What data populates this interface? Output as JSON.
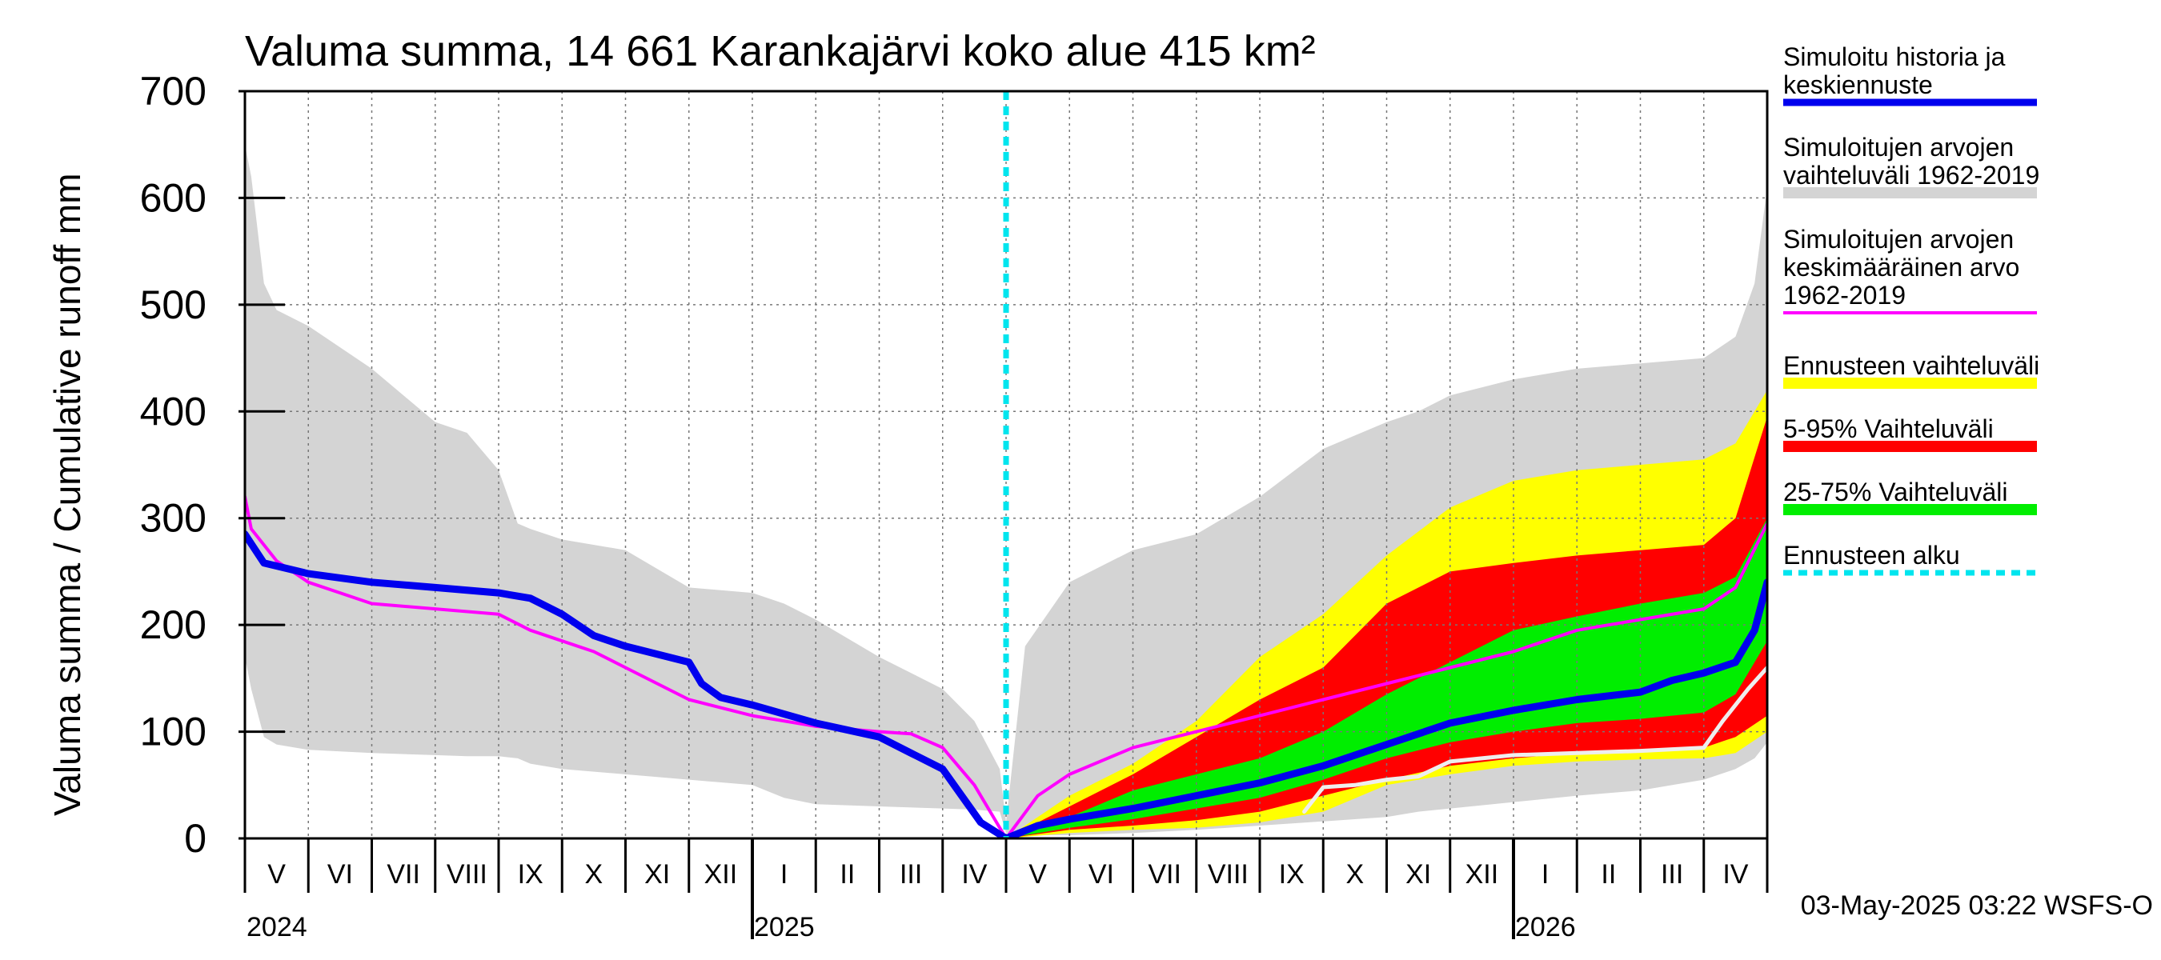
{
  "chart_data": {
    "type": "area",
    "title": "Valuma summa, 14 661 Karankajärvi koko alue 415 km²",
    "ylabel": "Valuma summa / Cumulative runoff    mm",
    "ylim": [
      0,
      700
    ],
    "yticks": [
      0,
      100,
      200,
      300,
      400,
      500,
      600,
      700
    ],
    "xlim": [
      0,
      24
    ],
    "forecast_start": 12,
    "month_labels": [
      {
        "pos": 0.5,
        "label": "V"
      },
      {
        "pos": 1.5,
        "label": "VI"
      },
      {
        "pos": 2.5,
        "label": "VII"
      },
      {
        "pos": 3.5,
        "label": "VIII"
      },
      {
        "pos": 4.5,
        "label": "IX"
      },
      {
        "pos": 5.5,
        "label": "X"
      },
      {
        "pos": 6.5,
        "label": "XI"
      },
      {
        "pos": 7.5,
        "label": "XII"
      },
      {
        "pos": 8.5,
        "label": "I"
      },
      {
        "pos": 9.5,
        "label": "II"
      },
      {
        "pos": 10.5,
        "label": "III"
      },
      {
        "pos": 11.5,
        "label": "IV"
      },
      {
        "pos": 12.5,
        "label": "V"
      },
      {
        "pos": 13.5,
        "label": "VI"
      },
      {
        "pos": 14.5,
        "label": "VII"
      },
      {
        "pos": 15.5,
        "label": "VIII"
      },
      {
        "pos": 16.5,
        "label": "IX"
      },
      {
        "pos": 17.5,
        "label": "X"
      },
      {
        "pos": 18.5,
        "label": "XI"
      },
      {
        "pos": 19.5,
        "label": "XII"
      },
      {
        "pos": 20.5,
        "label": "I"
      },
      {
        "pos": 21.5,
        "label": "II"
      },
      {
        "pos": 22.5,
        "label": "III"
      },
      {
        "pos": 23.5,
        "label": "IV"
      }
    ],
    "year_labels": [
      {
        "pos": 0,
        "label": "2024"
      },
      {
        "pos": 8,
        "label": "2025"
      },
      {
        "pos": 20,
        "label": "2026"
      }
    ],
    "year_ticks": [
      8,
      20
    ],
    "timestamp": "03-May-2025 03:22 WSFS-O",
    "legend": [
      {
        "label": "Simuloitu historia ja\nkeskiennuste",
        "color": "#0000ee",
        "style": "line"
      },
      {
        "label": "Simuloitujen arvojen\nvaihteluväli 1962-2019",
        "color": "#d4d4d4",
        "style": "band"
      },
      {
        "label": "Simuloitujen arvojen\nkeskimääräinen arvo\n   1962-2019",
        "color": "#ff00ff",
        "style": "thin"
      },
      {
        "label": "Ennusteen vaihteluväli",
        "color": "#ffff00",
        "style": "band"
      },
      {
        "label": "5-95% Vaihteluväli",
        "color": "#ff0000",
        "style": "band"
      },
      {
        "label": "25-75% Vaihteluväli",
        "color": "#00ee00",
        "style": "band"
      },
      {
        "label": "Ennusteen alku",
        "color": "#00e5ee",
        "style": "dashed"
      }
    ],
    "series": {
      "hist_range": {
        "name": "Simuloitujen arvojen vaihteluväli 1962-2019",
        "x": [
          0,
          0.1,
          0.3,
          0.5,
          1,
          2,
          3,
          3.5,
          4,
          4.3,
          4.5,
          5,
          6,
          7,
          8,
          8.5,
          9,
          10,
          11,
          11.5,
          11.9,
          12,
          12.3,
          13,
          14,
          15,
          16,
          17,
          18,
          18.5,
          19,
          20,
          21,
          22,
          23,
          23.5,
          23.8,
          24
        ],
        "upper": [
          650,
          620,
          520,
          495,
          480,
          440,
          390,
          380,
          345,
          295,
          290,
          280,
          270,
          235,
          230,
          220,
          205,
          170,
          140,
          110,
          65,
          15,
          180,
          240,
          270,
          285,
          320,
          365,
          390,
          400,
          415,
          430,
          440,
          445,
          450,
          470,
          520,
          610
        ],
        "lower": [
          170,
          140,
          95,
          88,
          83,
          80,
          78,
          77,
          77,
          75,
          70,
          65,
          60,
          55,
          50,
          38,
          32,
          30,
          28,
          27,
          25,
          5,
          3,
          3,
          5,
          8,
          12,
          16,
          20,
          25,
          28,
          34,
          40,
          45,
          55,
          65,
          75,
          90
        ]
      },
      "ens_range": {
        "name": "Ennusteen vaihteluväli",
        "x": [
          12,
          13,
          14,
          15,
          16,
          17,
          18,
          19,
          20,
          21,
          22,
          23,
          23.5,
          24
        ],
        "upper": [
          0,
          40,
          70,
          110,
          170,
          210,
          265,
          310,
          335,
          345,
          350,
          355,
          370,
          420
        ],
        "lower": [
          0,
          5,
          8,
          10,
          15,
          25,
          50,
          60,
          68,
          72,
          74,
          75,
          80,
          100
        ]
      },
      "p5_95": {
        "name": "5-95% Vaihteluväli",
        "x": [
          12,
          13,
          14,
          15,
          16,
          17,
          18,
          19,
          20,
          21,
          22,
          23,
          23.5,
          24
        ],
        "upper": [
          0,
          30,
          60,
          95,
          130,
          160,
          220,
          250,
          258,
          265,
          270,
          275,
          300,
          395
        ],
        "lower": [
          0,
          8,
          12,
          17,
          25,
          40,
          55,
          68,
          75,
          80,
          83,
          85,
          95,
          115
        ]
      },
      "p25_75": {
        "name": "25-75% Vaihteluväli",
        "x": [
          12,
          13,
          14,
          15,
          16,
          17,
          18,
          19,
          20,
          21,
          22,
          23,
          23.5,
          24
        ],
        "upper": [
          0,
          20,
          45,
          60,
          75,
          100,
          135,
          165,
          195,
          208,
          220,
          230,
          245,
          300
        ],
        "lower": [
          0,
          10,
          18,
          28,
          38,
          55,
          75,
          90,
          100,
          108,
          112,
          118,
          135,
          185
        ]
      },
      "hist_mean": {
        "name": "Simuloitujen arvojen keskimääräinen arvo 1962-2019",
        "x": [
          0,
          0.1,
          0.5,
          1,
          1.5,
          2,
          3,
          4,
          4.5,
          5,
          5.5,
          6,
          7,
          8,
          9,
          10,
          10.5,
          11,
          11.5,
          12,
          12.5,
          13,
          14,
          15,
          16,
          17,
          18,
          19,
          20,
          21,
          22,
          23,
          23.5,
          24
        ],
        "values": [
          320,
          290,
          260,
          240,
          230,
          220,
          215,
          210,
          195,
          185,
          175,
          160,
          130,
          115,
          105,
          100,
          98,
          85,
          50,
          0,
          40,
          60,
          85,
          100,
          115,
          130,
          145,
          160,
          175,
          195,
          205,
          215,
          235,
          295
        ]
      },
      "forecast_mean": {
        "name": "Simuloitu historia ja keskiennuste",
        "x": [
          0,
          0.3,
          1,
          2,
          3,
          4,
          4.5,
          5,
          5.5,
          6,
          7,
          7.2,
          7.5,
          8,
          9,
          10,
          10.5,
          11,
          11.3,
          11.6,
          12,
          12.5,
          13,
          14,
          15,
          16,
          17,
          18,
          19,
          20,
          21,
          22,
          22.5,
          23,
          23.5,
          23.8,
          24
        ],
        "values": [
          285,
          258,
          248,
          240,
          235,
          230,
          225,
          210,
          190,
          180,
          165,
          145,
          132,
          125,
          108,
          95,
          80,
          65,
          40,
          15,
          0,
          12,
          18,
          28,
          40,
          52,
          68,
          88,
          108,
          120,
          130,
          137,
          148,
          155,
          165,
          195,
          240
        ]
      },
      "white_line": {
        "name": "",
        "x": [
          16.7,
          17,
          17.5,
          18,
          18.5,
          19,
          20,
          21,
          22,
          23,
          23.3,
          23.7,
          24
        ],
        "values": [
          25,
          48,
          50,
          55,
          58,
          72,
          78,
          80,
          82,
          85,
          110,
          140,
          160
        ]
      }
    }
  }
}
